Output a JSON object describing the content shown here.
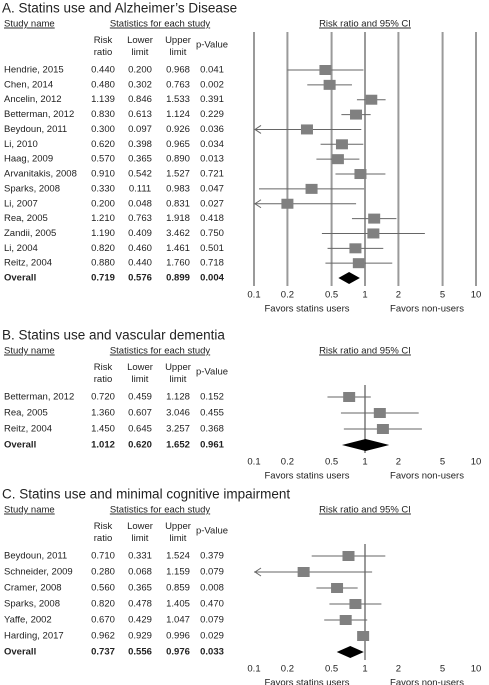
{
  "chart_data": [
    {
      "type": "forest",
      "title": "A. Statins use and Alzheimer’s Disease",
      "study_header": "Study name",
      "stats_header": "Statistics for each study",
      "plot_header": "Risk ratio and 95% CI",
      "studies": [
        "Hendrie, 2015",
        "Chen, 2014",
        "Ancelin, 2012",
        "Betterman, 2012",
        "Beydoun, 2011",
        "Li, 2010",
        "Haag, 2009",
        "Arvanitakis, 2008",
        "Sparks, 2008",
        "Li, 2007",
        "Rea, 2005",
        "Zandii, 2005",
        "Li, 2004",
        "Reitz, 2004",
        "Overall"
      ],
      "series": [
        {
          "name": "Risk ratio",
          "values": [
            0.44,
            0.48,
            1.139,
            0.83,
            0.3,
            0.62,
            0.57,
            0.91,
            0.33,
            0.2,
            1.21,
            1.19,
            0.82,
            0.88,
            0.719
          ],
          "value_labels": [
            "0.440",
            "0.480",
            "1.139",
            "0.830",
            "0.300",
            "0.620",
            "0.570",
            "0.910",
            "0.330",
            "0.200",
            "1.210",
            "1.190",
            "0.820",
            "0.880",
            "0.719"
          ]
        },
        {
          "name": "Lower limit",
          "values": [
            0.2,
            0.302,
            0.846,
            0.613,
            0.097,
            0.398,
            0.365,
            0.542,
            0.111,
            0.048,
            0.763,
            0.409,
            0.46,
            0.44,
            0.576
          ],
          "value_labels": [
            "0.200",
            "0.302",
            "0.846",
            "0.613",
            "0.097",
            "0.398",
            "0.365",
            "0.542",
            "0.111",
            "0.048",
            "0.763",
            "0.409",
            "0.460",
            "0.440",
            "0.576"
          ]
        },
        {
          "name": "Upper limit",
          "values": [
            0.968,
            0.763,
            1.533,
            1.124,
            0.926,
            0.965,
            0.89,
            1.527,
            0.983,
            0.831,
            1.918,
            3.462,
            1.461,
            1.76,
            0.899
          ],
          "value_labels": [
            "0.968",
            "0.763",
            "1.533",
            "1.124",
            "0.926",
            "0.965",
            "0.890",
            "1.527",
            "0.983",
            "0.831",
            "1.918",
            "3.462",
            "1.461",
            "1.760",
            "0.899"
          ]
        },
        {
          "name": "p-Value",
          "values": [
            0.041,
            0.002,
            0.391,
            0.229,
            0.036,
            0.034,
            0.013,
            0.721,
            0.047,
            0.027,
            0.418,
            0.75,
            0.501,
            0.718,
            0.004
          ],
          "value_labels": [
            "0.041",
            "0.002",
            "0.391",
            "0.229",
            "0.036",
            "0.034",
            "0.013",
            "0.721",
            "0.047",
            "0.027",
            "0.418",
            "0.750",
            "0.501",
            "0.718",
            "0.004"
          ]
        }
      ],
      "summary_last": true,
      "log_x": true,
      "xlim": [
        0.1,
        10
      ],
      "xticks": [
        0.1,
        0.2,
        0.5,
        1,
        2,
        5,
        10
      ],
      "grid": true,
      "reference_line": 1,
      "x_labels": [
        "Favors statins users",
        "Favors non-users"
      ],
      "color": "#808080"
    },
    {
      "type": "forest",
      "title": "B. Statins use and vascular dementia",
      "study_header": "Study name",
      "stats_header": "Statistics for each study",
      "plot_header": "Risk ratio and 95% CI",
      "studies": [
        "Betterman, 2012",
        "Rea, 2005",
        "Reitz, 2004",
        "Overall"
      ],
      "series": [
        {
          "name": "Risk ratio",
          "values": [
            0.72,
            1.36,
            1.45,
            1.012
          ],
          "value_labels": [
            "0.720",
            "1.360",
            "1.450",
            "1.012"
          ]
        },
        {
          "name": "Lower limit",
          "values": [
            0.459,
            0.607,
            0.645,
            0.62
          ],
          "value_labels": [
            "0.459",
            "0.607",
            "0.645",
            "0.620"
          ]
        },
        {
          "name": "Upper limit",
          "values": [
            1.128,
            3.046,
            3.257,
            1.652
          ],
          "value_labels": [
            "1.128",
            "3.046",
            "3.257",
            "1.652"
          ]
        },
        {
          "name": "p-Value",
          "values": [
            0.152,
            0.455,
            0.368,
            0.961
          ],
          "value_labels": [
            "0.152",
            "0.455",
            "0.368",
            "0.961"
          ]
        }
      ],
      "summary_last": true,
      "log_x": true,
      "xlim": [
        0.1,
        10
      ],
      "xticks": [
        0.1,
        0.2,
        0.5,
        1,
        2,
        5,
        10
      ],
      "grid": false,
      "reference_line": 1,
      "x_labels": [
        "Favors statins users",
        "Favors non-users"
      ],
      "color": "#808080"
    },
    {
      "type": "forest",
      "title": "C. Statins use and minimal cognitive impairment",
      "study_header": "Study name",
      "stats_header": "Statistics for each study",
      "plot_header": "Risk ratio and 95% CI",
      "studies": [
        "Beydoun, 2011",
        "Schneider, 2009",
        "Cramer, 2008",
        "Sparks, 2008",
        "Yaffe, 2002",
        "Harding, 2017",
        "Overall"
      ],
      "series": [
        {
          "name": "Risk ratio",
          "values": [
            0.71,
            0.28,
            0.56,
            0.82,
            0.67,
            0.962,
            0.737
          ],
          "value_labels": [
            "0.710",
            "0.280",
            "0.560",
            "0.820",
            "0.670",
            "0.962",
            "0.737"
          ]
        },
        {
          "name": "Lower limit",
          "values": [
            0.331,
            0.068,
            0.365,
            0.478,
            0.429,
            0.929,
            0.556
          ],
          "value_labels": [
            "0.331",
            "0.068",
            "0.365",
            "0.478",
            "0.429",
            "0.929",
            "0.556"
          ]
        },
        {
          "name": "Upper limit",
          "values": [
            1.524,
            1.159,
            0.859,
            1.405,
            1.047,
            0.996,
            0.976
          ],
          "value_labels": [
            "1.524",
            "1.159",
            "0.859",
            "1.405",
            "1.047",
            "0.996",
            "0.976"
          ]
        },
        {
          "name": "p-Value",
          "values": [
            0.379,
            0.079,
            0.008,
            0.47,
            0.079,
            0.029,
            0.033
          ],
          "value_labels": [
            "0.379",
            "0.079",
            "0.008",
            "0.470",
            "0.079",
            "0.029",
            "0.033"
          ]
        }
      ],
      "summary_last": true,
      "log_x": true,
      "xlim": [
        0.1,
        10
      ],
      "xticks": [
        0.1,
        0.2,
        0.5,
        1,
        2,
        5,
        10
      ],
      "grid": false,
      "reference_line": 1,
      "x_labels": [
        "Favors statins users",
        "Favors non-users"
      ],
      "color": "#808080"
    }
  ]
}
